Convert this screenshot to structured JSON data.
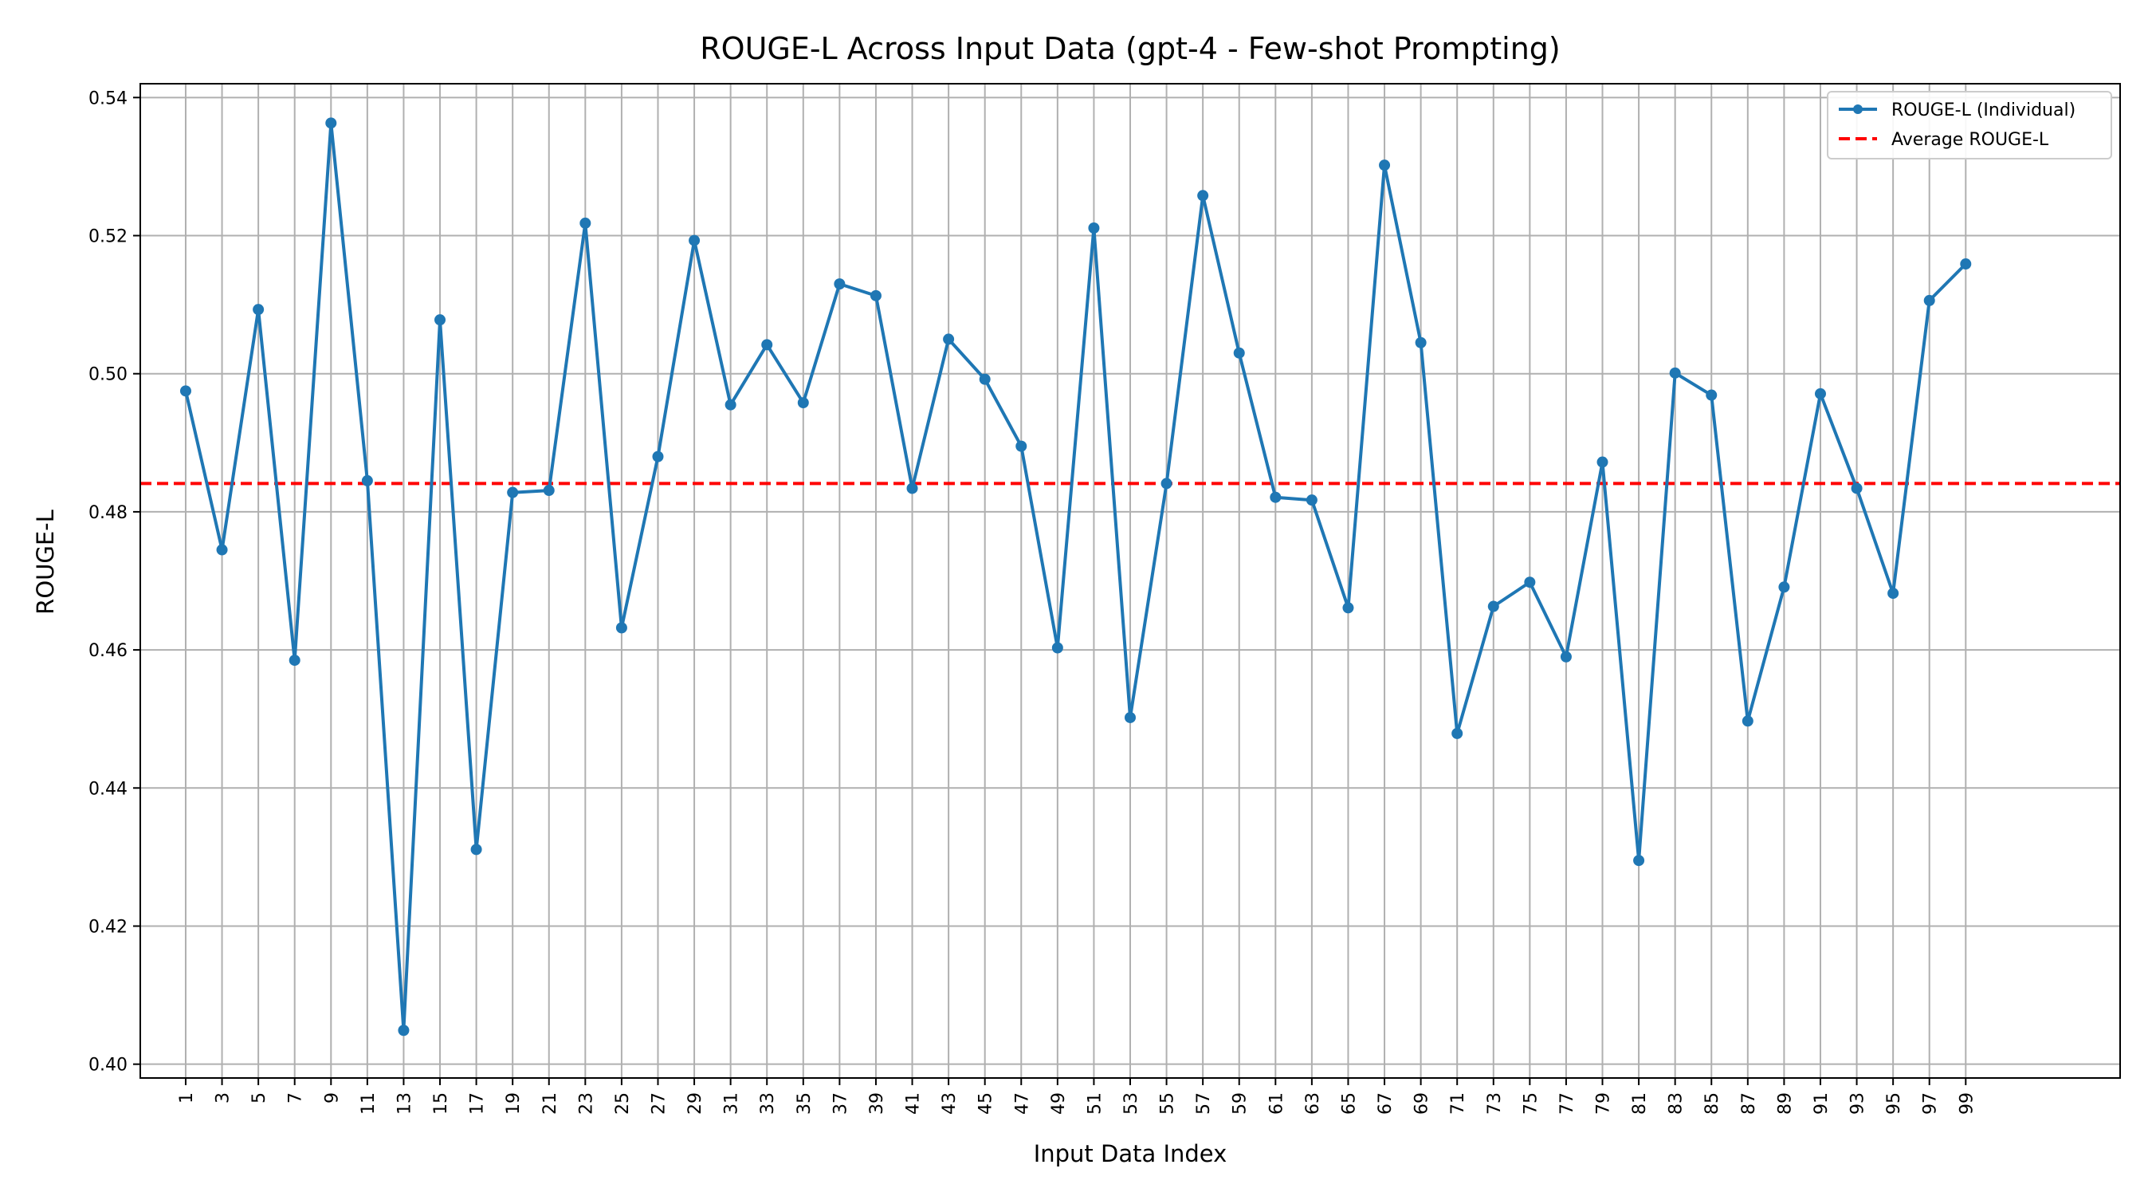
{
  "chart_data": {
    "type": "line",
    "title": "ROUGE-L Across Input Data (gpt-4 - Few-shot Prompting)",
    "xlabel": "Input Data Index",
    "ylabel": "ROUGE-L",
    "ylim": [
      0.398,
      0.542
    ],
    "xlim": [
      -1.5,
      107.5
    ],
    "yticks": [
      0.4,
      0.42,
      0.44,
      0.46,
      0.48,
      0.5,
      0.52,
      0.54
    ],
    "ytick_labels": [
      "0.40",
      "0.42",
      "0.44",
      "0.46",
      "0.48",
      "0.50",
      "0.52",
      "0.54"
    ],
    "xticks": [
      1,
      3,
      5,
      7,
      9,
      11,
      13,
      15,
      17,
      19,
      21,
      23,
      25,
      27,
      29,
      31,
      33,
      35,
      37,
      39,
      41,
      43,
      45,
      47,
      49,
      51,
      53,
      55,
      57,
      59,
      61,
      63,
      65,
      67,
      69,
      71,
      73,
      75,
      77,
      79,
      81,
      83,
      85,
      87,
      89,
      91,
      93,
      95,
      97,
      99
    ],
    "xtick_labels": [
      "1",
      "3",
      "5",
      "7",
      "9",
      "11",
      "13",
      "15",
      "17",
      "19",
      "21",
      "23",
      "25",
      "27",
      "29",
      "31",
      "33",
      "35",
      "37",
      "39",
      "41",
      "43",
      "45",
      "47",
      "49",
      "51",
      "53",
      "55",
      "57",
      "59",
      "61",
      "63",
      "65",
      "67",
      "69",
      "71",
      "73",
      "75",
      "77",
      "79",
      "81",
      "83",
      "85",
      "87",
      "89",
      "91",
      "93",
      "95",
      "97",
      "99"
    ],
    "grid": true,
    "legend_position": "top-right",
    "series": [
      {
        "name": "ROUGE-L (Individual)",
        "color": "#1f77b4",
        "style": "solid-with-markers",
        "x": [
          1,
          3,
          5,
          7,
          9,
          11,
          13,
          15,
          17,
          19,
          21,
          23,
          25,
          27,
          29,
          31,
          33,
          35,
          37,
          39,
          41,
          43,
          45,
          47,
          49,
          51,
          53,
          55,
          57,
          59,
          61,
          63,
          65,
          67,
          69,
          71,
          73,
          75,
          77,
          79,
          81,
          83,
          85,
          87,
          89,
          91,
          93,
          95,
          97,
          99
        ],
        "y": [
          0.4975,
          0.4745,
          0.5093,
          0.4585,
          0.5363,
          0.4845,
          0.4049,
          0.5078,
          0.4311,
          0.4828,
          0.4831,
          0.5218,
          0.4632,
          0.488,
          0.5193,
          0.4955,
          0.5042,
          0.4958,
          0.513,
          0.5113,
          0.4834,
          0.505,
          0.4992,
          0.4895,
          0.4603,
          0.5211,
          0.4502,
          0.4841,
          0.5258,
          0.503,
          0.4821,
          0.4817,
          0.4661,
          0.5302,
          0.5045,
          0.4479,
          0.4663,
          0.4698,
          0.459,
          0.4872,
          0.4295,
          0.5001,
          0.4969,
          0.4497,
          0.4691,
          0.4971,
          0.4834,
          0.4682,
          0.5106,
          0.5159
        ]
      },
      {
        "name": "Average ROUGE-L",
        "color": "#ff0000",
        "style": "dashed-horizontal",
        "y": 0.4841
      }
    ]
  }
}
